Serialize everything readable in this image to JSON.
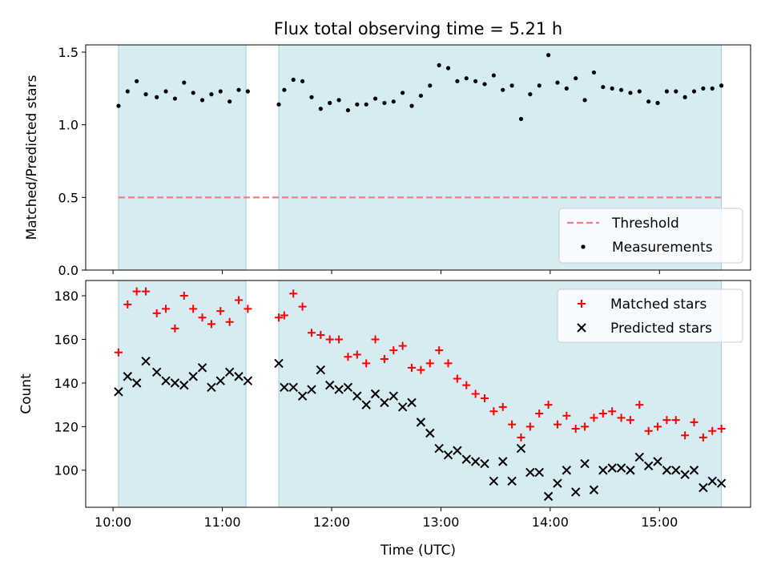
{
  "title": "Flux total observing time = 5.21 h",
  "chart_data": [
    {
      "type": "scatter",
      "ylabel": "Matched/Predicted stars",
      "ylim": [
        0,
        1.55
      ],
      "yticks": [
        "0.0",
        "0.5",
        "1.0",
        "1.5"
      ],
      "xlim": [
        "09:45",
        "15:50"
      ],
      "shaded_spans": [
        [
          "10:03",
          "11:13"
        ],
        [
          "11:31",
          "15:34"
        ]
      ],
      "threshold": {
        "name": "Threshold",
        "value": 0.5,
        "color": "#f08080",
        "x": [
          "10:03",
          "15:34"
        ]
      },
      "series": [
        {
          "name": "Measurements",
          "color": "#000000",
          "points": [
            [
              "10:03",
              1.13
            ],
            [
              "10:08",
              1.23
            ],
            [
              "10:13",
              1.3
            ],
            [
              "10:18",
              1.21
            ],
            [
              "10:24",
              1.19
            ],
            [
              "10:29",
              1.23
            ],
            [
              "10:34",
              1.18
            ],
            [
              "10:39",
              1.29
            ],
            [
              "10:44",
              1.22
            ],
            [
              "10:49",
              1.17
            ],
            [
              "10:54",
              1.21
            ],
            [
              "10:59",
              1.23
            ],
            [
              "11:04",
              1.16
            ],
            [
              "11:09",
              1.24
            ],
            [
              "11:14",
              1.23
            ],
            [
              "11:31",
              1.14
            ],
            [
              "11:34",
              1.24
            ],
            [
              "11:39",
              1.31
            ],
            [
              "11:44",
              1.3
            ],
            [
              "11:49",
              1.19
            ],
            [
              "11:54",
              1.11
            ],
            [
              "11:59",
              1.15
            ],
            [
              "12:04",
              1.17
            ],
            [
              "12:09",
              1.1
            ],
            [
              "12:14",
              1.14
            ],
            [
              "12:19",
              1.14
            ],
            [
              "12:24",
              1.18
            ],
            [
              "12:29",
              1.15
            ],
            [
              "12:34",
              1.16
            ],
            [
              "12:39",
              1.22
            ],
            [
              "12:44",
              1.13
            ],
            [
              "12:49",
              1.2
            ],
            [
              "12:54",
              1.27
            ],
            [
              "12:59",
              1.41
            ],
            [
              "13:04",
              1.39
            ],
            [
              "13:09",
              1.3
            ],
            [
              "13:14",
              1.32
            ],
            [
              "13:19",
              1.3
            ],
            [
              "13:24",
              1.28
            ],
            [
              "13:29",
              1.34
            ],
            [
              "13:34",
              1.24
            ],
            [
              "13:39",
              1.27
            ],
            [
              "13:44",
              1.04
            ],
            [
              "13:49",
              1.21
            ],
            [
              "13:54",
              1.27
            ],
            [
              "13:59",
              1.48
            ],
            [
              "14:04",
              1.29
            ],
            [
              "14:09",
              1.25
            ],
            [
              "14:14",
              1.32
            ],
            [
              "14:19",
              1.17
            ],
            [
              "14:24",
              1.36
            ],
            [
              "14:29",
              1.26
            ],
            [
              "14:34",
              1.25
            ],
            [
              "14:39",
              1.24
            ],
            [
              "14:44",
              1.22
            ],
            [
              "14:49",
              1.23
            ],
            [
              "14:54",
              1.16
            ],
            [
              "14:59",
              1.15
            ],
            [
              "15:04",
              1.23
            ],
            [
              "15:09",
              1.23
            ],
            [
              "15:14",
              1.19
            ],
            [
              "15:19",
              1.23
            ],
            [
              "15:24",
              1.25
            ],
            [
              "15:29",
              1.25
            ],
            [
              "15:34",
              1.27
            ]
          ]
        }
      ],
      "legend": "lower-right"
    },
    {
      "type": "scatter",
      "xlabel": "Time (UTC)",
      "ylabel": "Count",
      "ylim": [
        83,
        187
      ],
      "yticks": [
        "100",
        "120",
        "140",
        "160",
        "180"
      ],
      "xlim": [
        "09:45",
        "15:50"
      ],
      "xticks": [
        "10:00",
        "11:00",
        "12:00",
        "13:00",
        "14:00",
        "15:00"
      ],
      "shaded_spans": [
        [
          "10:03",
          "11:13"
        ],
        [
          "11:31",
          "15:34"
        ]
      ],
      "series": [
        {
          "name": "Matched stars",
          "color": "#ff0000",
          "marker": "+",
          "points": [
            [
              "10:03",
              154
            ],
            [
              "10:08",
              176
            ],
            [
              "10:13",
              182
            ],
            [
              "10:18",
              182
            ],
            [
              "10:24",
              172
            ],
            [
              "10:29",
              174
            ],
            [
              "10:34",
              165
            ],
            [
              "10:39",
              180
            ],
            [
              "10:44",
              174
            ],
            [
              "10:49",
              170
            ],
            [
              "10:54",
              167
            ],
            [
              "10:59",
              173
            ],
            [
              "11:04",
              168
            ],
            [
              "11:09",
              178
            ],
            [
              "11:14",
              174
            ],
            [
              "11:31",
              170
            ],
            [
              "11:34",
              171
            ],
            [
              "11:39",
              181
            ],
            [
              "11:44",
              175
            ],
            [
              "11:49",
              163
            ],
            [
              "11:54",
              162
            ],
            [
              "11:59",
              160
            ],
            [
              "12:04",
              160
            ],
            [
              "12:09",
              152
            ],
            [
              "12:14",
              153
            ],
            [
              "12:19",
              149
            ],
            [
              "12:24",
              160
            ],
            [
              "12:29",
              151
            ],
            [
              "12:34",
              155
            ],
            [
              "12:39",
              157
            ],
            [
              "12:44",
              147
            ],
            [
              "12:49",
              146
            ],
            [
              "12:54",
              149
            ],
            [
              "12:59",
              155
            ],
            [
              "13:04",
              149
            ],
            [
              "13:09",
              142
            ],
            [
              "13:14",
              139
            ],
            [
              "13:19",
              135
            ],
            [
              "13:24",
              133
            ],
            [
              "13:29",
              127
            ],
            [
              "13:34",
              129
            ],
            [
              "13:39",
              121
            ],
            [
              "13:44",
              115
            ],
            [
              "13:49",
              120
            ],
            [
              "13:54",
              126
            ],
            [
              "13:59",
              130
            ],
            [
              "14:04",
              121
            ],
            [
              "14:09",
              125
            ],
            [
              "14:14",
              119
            ],
            [
              "14:19",
              120
            ],
            [
              "14:24",
              124
            ],
            [
              "14:29",
              126
            ],
            [
              "14:34",
              127
            ],
            [
              "14:39",
              124
            ],
            [
              "14:44",
              123
            ],
            [
              "14:49",
              130
            ],
            [
              "14:54",
              118
            ],
            [
              "14:59",
              120
            ],
            [
              "15:04",
              123
            ],
            [
              "15:09",
              123
            ],
            [
              "15:14",
              116
            ],
            [
              "15:19",
              122
            ],
            [
              "15:24",
              115
            ],
            [
              "15:29",
              118
            ],
            [
              "15:34",
              119
            ]
          ]
        },
        {
          "name": "Predicted stars",
          "color": "#000000",
          "marker": "x",
          "points": [
            [
              "10:03",
              136
            ],
            [
              "10:08",
              143
            ],
            [
              "10:13",
              140
            ],
            [
              "10:18",
              150
            ],
            [
              "10:24",
              145
            ],
            [
              "10:29",
              141
            ],
            [
              "10:34",
              140
            ],
            [
              "10:39",
              139
            ],
            [
              "10:44",
              143
            ],
            [
              "10:49",
              147
            ],
            [
              "10:54",
              138
            ],
            [
              "10:59",
              141
            ],
            [
              "11:04",
              145
            ],
            [
              "11:09",
              143
            ],
            [
              "11:14",
              141
            ],
            [
              "11:31",
              149
            ],
            [
              "11:34",
              138
            ],
            [
              "11:39",
              138
            ],
            [
              "11:44",
              134
            ],
            [
              "11:49",
              137
            ],
            [
              "11:54",
              146
            ],
            [
              "11:59",
              139
            ],
            [
              "12:04",
              137
            ],
            [
              "12:09",
              138
            ],
            [
              "12:14",
              134
            ],
            [
              "12:19",
              130
            ],
            [
              "12:24",
              135
            ],
            [
              "12:29",
              131
            ],
            [
              "12:34",
              134
            ],
            [
              "12:39",
              129
            ],
            [
              "12:44",
              131
            ],
            [
              "12:49",
              122
            ],
            [
              "12:54",
              117
            ],
            [
              "12:59",
              110
            ],
            [
              "13:04",
              107
            ],
            [
              "13:09",
              109
            ],
            [
              "13:14",
              105
            ],
            [
              "13:19",
              104
            ],
            [
              "13:24",
              103
            ],
            [
              "13:29",
              95
            ],
            [
              "13:34",
              104
            ],
            [
              "13:39",
              95
            ],
            [
              "13:44",
              110
            ],
            [
              "13:49",
              99
            ],
            [
              "13:54",
              99
            ],
            [
              "13:59",
              88
            ],
            [
              "14:04",
              94
            ],
            [
              "14:09",
              100
            ],
            [
              "14:14",
              90
            ],
            [
              "14:19",
              103
            ],
            [
              "14:24",
              91
            ],
            [
              "14:29",
              100
            ],
            [
              "14:34",
              101
            ],
            [
              "14:39",
              101
            ],
            [
              "14:44",
              100
            ],
            [
              "14:49",
              106
            ],
            [
              "14:54",
              102
            ],
            [
              "14:59",
              104
            ],
            [
              "15:04",
              100
            ],
            [
              "15:09",
              100
            ],
            [
              "15:14",
              98
            ],
            [
              "15:19",
              100
            ],
            [
              "15:24",
              92
            ],
            [
              "15:29",
              95
            ],
            [
              "15:34",
              94
            ]
          ]
        }
      ],
      "legend": "top-right"
    }
  ],
  "colors": {
    "shade": "#add8e6",
    "threshold": "#f08080"
  }
}
